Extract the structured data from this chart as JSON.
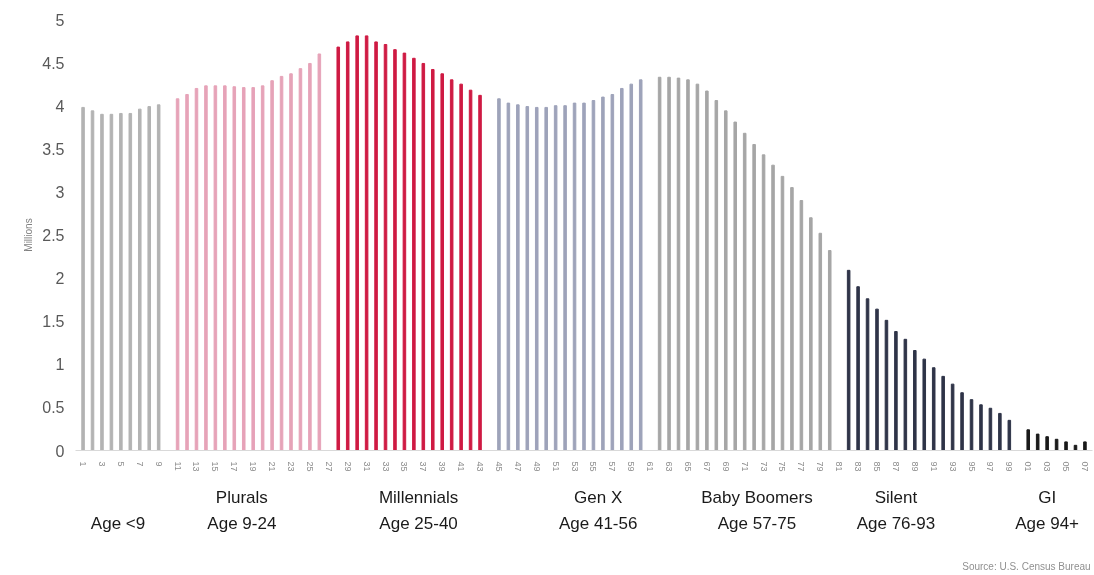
{
  "chart_data": {
    "type": "bar",
    "ylabel": "Millions",
    "categories": [
      "1",
      null,
      "3",
      null,
      "5",
      null,
      "7",
      null,
      "9",
      null,
      "11",
      null,
      "13",
      null,
      "15",
      null,
      "17",
      null,
      "19",
      null,
      "21",
      null,
      "23",
      null,
      "25",
      null,
      "27",
      null,
      "29",
      null,
      "31",
      null,
      "33",
      null,
      "35",
      null,
      "37",
      null,
      "39",
      null,
      "41",
      null,
      "43",
      null,
      "45",
      null,
      "47",
      null,
      "49",
      null,
      "51",
      null,
      "53",
      null,
      "55",
      null,
      "57",
      null,
      "59",
      null,
      "61",
      null,
      "63",
      null,
      "65",
      null,
      "67",
      null,
      "69",
      null,
      "71",
      null,
      "73",
      null,
      "75",
      null,
      "77",
      null,
      "79",
      null,
      "81",
      null,
      "83",
      null,
      "85",
      null,
      "87",
      null,
      "89",
      null,
      "91",
      null,
      "93",
      null,
      "95",
      null,
      "97",
      null,
      "99",
      null,
      "01",
      null,
      "03",
      null,
      "05",
      null,
      "07"
    ],
    "values": [
      3.98,
      3.94,
      3.9,
      3.9,
      3.91,
      3.91,
      3.96,
      3.99,
      4.01,
      null,
      4.08,
      4.13,
      4.2,
      4.23,
      4.23,
      4.23,
      4.22,
      4.21,
      4.21,
      4.23,
      4.29,
      4.34,
      4.37,
      4.43,
      4.49,
      4.6,
      null,
      4.68,
      4.74,
      4.81,
      4.81,
      4.74,
      4.71,
      4.65,
      4.61,
      4.55,
      4.49,
      4.42,
      4.37,
      4.3,
      4.25,
      4.18,
      4.12,
      null,
      4.08,
      4.03,
      4.01,
      3.99,
      3.98,
      3.98,
      4.0,
      4.0,
      4.03,
      4.03,
      4.06,
      4.1,
      4.13,
      4.2,
      4.25,
      4.3,
      null,
      4.33,
      4.33,
      4.32,
      4.3,
      4.25,
      4.17,
      4.06,
      3.94,
      3.81,
      3.68,
      3.55,
      3.43,
      3.31,
      3.18,
      3.05,
      2.9,
      2.7,
      2.52,
      2.32,
      null,
      2.09,
      1.9,
      1.76,
      1.64,
      1.51,
      1.38,
      1.29,
      1.16,
      1.06,
      0.96,
      0.86,
      0.77,
      0.67,
      0.59,
      0.53,
      0.49,
      0.43,
      0.35,
      null,
      0.24,
      0.19,
      0.16,
      0.13,
      0.1,
      0.06,
      0.1
    ],
    "colors": [
      "#b3b3b3",
      "#b3b3b3",
      "#b3b3b3",
      "#b3b3b3",
      "#b3b3b3",
      "#b3b3b3",
      "#b3b3b3",
      "#b3b3b3",
      "#b3b3b3",
      "#ffffff",
      "#e6a3b8",
      "#e6a3b8",
      "#e6a3b8",
      "#e6a3b8",
      "#e6a3b8",
      "#e6a3b8",
      "#e6a3b8",
      "#e6a3b8",
      "#e6a3b8",
      "#e6a3b8",
      "#e6a3b8",
      "#e6a3b8",
      "#e6a3b8",
      "#e6a3b8",
      "#e6a3b8",
      "#e6a3b8",
      "#ffffff",
      "#cf1a43",
      "#cf1a43",
      "#cf1a43",
      "#cf1a43",
      "#cf1a43",
      "#cf1a43",
      "#cf1a43",
      "#cf1a43",
      "#cf1a43",
      "#cf1a43",
      "#cf1a43",
      "#cf1a43",
      "#cf1a43",
      "#cf1a43",
      "#cf1a43",
      "#cf1a43",
      "#ffffff",
      "#9ea3ba",
      "#9ea3ba",
      "#9ea3ba",
      "#9ea3ba",
      "#9ea3ba",
      "#9ea3ba",
      "#9ea3ba",
      "#9ea3ba",
      "#9ea3ba",
      "#9ea3ba",
      "#9ea3ba",
      "#9ea3ba",
      "#9ea3ba",
      "#9ea3ba",
      "#9ea3ba",
      "#9ea3ba",
      "#ffffff",
      "#a6a6a6",
      "#a6a6a6",
      "#a6a6a6",
      "#a6a6a6",
      "#a6a6a6",
      "#a6a6a6",
      "#a6a6a6",
      "#a6a6a6",
      "#a6a6a6",
      "#a6a6a6",
      "#a6a6a6",
      "#a6a6a6",
      "#a6a6a6",
      "#a6a6a6",
      "#a6a6a6",
      "#a6a6a6",
      "#a6a6a6",
      "#a6a6a6",
      "#a6a6a6",
      "#ffffff",
      "#2f3448",
      "#2f3448",
      "#2f3448",
      "#2f3448",
      "#2f3448",
      "#2f3448",
      "#2f3448",
      "#2f3448",
      "#2f3448",
      "#2f3448",
      "#2f3448",
      "#2f3448",
      "#2f3448",
      "#2f3448",
      "#2f3448",
      "#2f3448",
      "#2f3448",
      "#2f3448",
      "#ffffff",
      "#1a1a1a",
      "#1a1a1a",
      "#1a1a1a",
      "#1a1a1a",
      "#1a1a1a",
      "#1a1a1a",
      "#1a1a1a"
    ],
    "ylim": [
      0,
      5
    ],
    "yticks": [
      0,
      0.5,
      1,
      1.5,
      2,
      2.5,
      3,
      3.5,
      4,
      4.5,
      5
    ],
    "grid": false,
    "annotations": [
      "Age <9",
      "Plurals",
      "Age 9-24",
      "Millennials",
      "Age 25-40",
      "Gen X",
      "Age 41-56",
      "Baby Boomers",
      "Age 57-75",
      "Silent",
      "Age 76-93",
      "GI",
      "Age 94+",
      "Source: U.S. Census Bureau"
    ]
  }
}
